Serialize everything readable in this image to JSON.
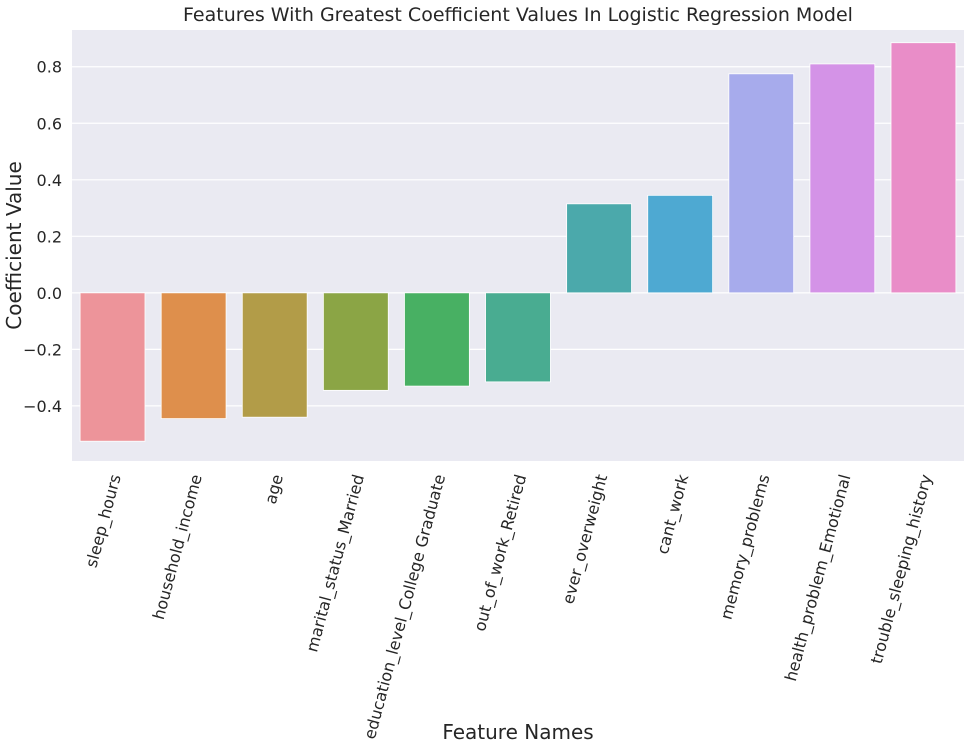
{
  "chart_data": {
    "type": "bar",
    "title": "Features With Greatest Coefficient Values In Logistic Regression Model",
    "xlabel": "Feature Names",
    "ylabel": "Coefficient Value",
    "categories": [
      "sleep_hours",
      "household_income",
      "age",
      "marital_status_Married",
      "education_level_College Graduate",
      "out_of_work_Retired",
      "ever_overweight",
      "cant_work",
      "memory_problems",
      "health_problem_Emotional",
      "trouble_sleeping_history"
    ],
    "values": [
      -0.525,
      -0.445,
      -0.44,
      -0.345,
      -0.33,
      -0.315,
      0.315,
      0.345,
      0.775,
      0.81,
      0.885
    ],
    "colors": [
      "#ED949A",
      "#DE8F4C",
      "#B29C48",
      "#8BA545",
      "#48B063",
      "#49AC91",
      "#4BA9AB",
      "#4EA9D2",
      "#A7ABEC",
      "#D493E7",
      "#E98DC8"
    ],
    "ylim": [
      -0.595,
      0.93
    ],
    "yticks": [
      -0.4,
      -0.2,
      0.0,
      0.2,
      0.4,
      0.6,
      0.8
    ],
    "ytick_labels": [
      "−0.4",
      "−0.2",
      "0.0",
      "0.2",
      "0.4",
      "0.6",
      "0.8"
    ],
    "grid": true,
    "background": "#EAEAF2",
    "grid_color": "#FFFFFF"
  }
}
